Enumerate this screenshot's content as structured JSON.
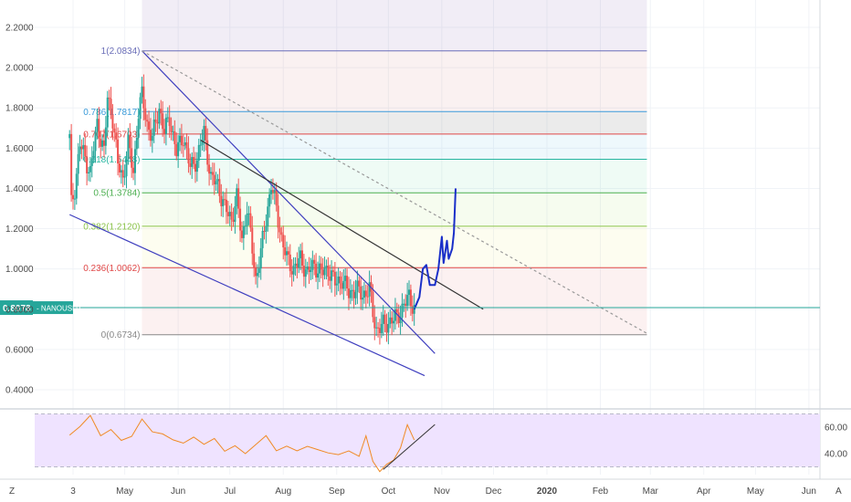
{
  "chart_data": [
    {
      "type": "candlestick",
      "symbol_label": "NANOUSDT",
      "last_price_label": "0.8078",
      "last_price": 0.8078,
      "y_axis_ticks": [
        "2.2000",
        "2.0000",
        "1.8000",
        "1.6000",
        "1.4000",
        "1.2000",
        "1.0000",
        "0.8000",
        "0.6000",
        "0.4000"
      ],
      "y_axis_tick_values": [
        2.2,
        2.0,
        1.8,
        1.6,
        1.4,
        1.2,
        1.0,
        0.8,
        0.6,
        0.4
      ],
      "ylim": [
        0.3,
        2.3
      ],
      "x_axis_labels": [
        "3",
        "May",
        "Jun",
        "Jul",
        "Aug",
        "Sep",
        "Oct",
        "Nov",
        "Dec",
        "2020",
        "Feb",
        "Mar",
        "Apr",
        "May",
        "Jun"
      ],
      "x_axis_label_days": [
        2,
        32,
        63,
        93,
        124,
        155,
        185,
        216,
        246,
        277,
        308,
        337,
        368,
        398,
        429
      ],
      "fibonacci": [
        {
          "label": "1(2.0834)",
          "ratio": 1,
          "price": 2.0834,
          "color": "#6a6eb8"
        },
        {
          "label": "0.786(1.7817)",
          "ratio": 0.786,
          "price": 1.7817,
          "color": "#3a9ad9"
        },
        {
          "label": "0.707(1.6703)",
          "ratio": 0.707,
          "price": 1.6703,
          "color": "#e04848"
        },
        {
          "label": "0.618(1.5448)",
          "ratio": 0.618,
          "price": 1.5448,
          "color": "#26b5a0"
        },
        {
          "label": "0.5(1.3784)",
          "ratio": 0.5,
          "price": 1.3784,
          "color": "#4caf50"
        },
        {
          "label": "0.382(1.2120)",
          "ratio": 0.382,
          "price": 1.212,
          "color": "#8bc34a"
        },
        {
          "label": "0.236(1.0062)",
          "ratio": 0.236,
          "price": 1.0062,
          "color": "#e04848"
        },
        {
          "label": "0(0.6734)",
          "ratio": 0,
          "price": 0.6734,
          "color": "#888888"
        }
      ],
      "price_series": [
        {
          "day": 0,
          "price": 1.65
        },
        {
          "day": 1,
          "price": 1.32
        },
        {
          "day": 3,
          "price": 1.4
        },
        {
          "day": 6,
          "price": 1.62
        },
        {
          "day": 9,
          "price": 1.55
        },
        {
          "day": 12,
          "price": 1.48
        },
        {
          "day": 16,
          "price": 1.72
        },
        {
          "day": 20,
          "price": 1.58
        },
        {
          "day": 22,
          "price": 1.85
        },
        {
          "day": 25,
          "price": 1.75
        },
        {
          "day": 28,
          "price": 1.52
        },
        {
          "day": 31,
          "price": 1.45
        },
        {
          "day": 34,
          "price": 1.62
        },
        {
          "day": 37,
          "price": 1.48
        },
        {
          "day": 40,
          "price": 1.78
        },
        {
          "day": 42,
          "price": 1.86
        },
        {
          "day": 45,
          "price": 1.72
        },
        {
          "day": 48,
          "price": 1.65
        },
        {
          "day": 52,
          "price": 1.8
        },
        {
          "day": 55,
          "price": 1.68
        },
        {
          "day": 58,
          "price": 1.75
        },
        {
          "day": 62,
          "price": 1.58
        },
        {
          "day": 66,
          "price": 1.66
        },
        {
          "day": 70,
          "price": 1.5
        },
        {
          "day": 74,
          "price": 1.55
        },
        {
          "day": 78,
          "price": 1.68
        },
        {
          "day": 82,
          "price": 1.45
        },
        {
          "day": 86,
          "price": 1.42
        },
        {
          "day": 90,
          "price": 1.3
        },
        {
          "day": 94,
          "price": 1.25
        },
        {
          "day": 97,
          "price": 1.35
        },
        {
          "day": 100,
          "price": 1.15
        },
        {
          "day": 103,
          "price": 1.3
        },
        {
          "day": 106,
          "price": 1.1
        },
        {
          "day": 108,
          "price": 0.95
        },
        {
          "day": 111,
          "price": 1.08
        },
        {
          "day": 114,
          "price": 1.25
        },
        {
          "day": 117,
          "price": 1.42
        },
        {
          "day": 120,
          "price": 1.3
        },
        {
          "day": 123,
          "price": 1.15
        },
        {
          "day": 126,
          "price": 1.05
        },
        {
          "day": 130,
          "price": 1.0
        },
        {
          "day": 134,
          "price": 1.05
        },
        {
          "day": 138,
          "price": 0.98
        },
        {
          "day": 142,
          "price": 1.02
        },
        {
          "day": 146,
          "price": 0.98
        },
        {
          "day": 150,
          "price": 1.0
        },
        {
          "day": 154,
          "price": 0.93
        },
        {
          "day": 158,
          "price": 0.95
        },
        {
          "day": 162,
          "price": 0.88
        },
        {
          "day": 166,
          "price": 0.9
        },
        {
          "day": 170,
          "price": 0.87
        },
        {
          "day": 174,
          "price": 0.9
        },
        {
          "day": 176,
          "price": 0.78
        },
        {
          "day": 178,
          "price": 0.7
        },
        {
          "day": 182,
          "price": 0.72
        },
        {
          "day": 186,
          "price": 0.74
        },
        {
          "day": 190,
          "price": 0.76
        },
        {
          "day": 194,
          "price": 0.82
        },
        {
          "day": 197,
          "price": 0.86
        },
        {
          "day": 200,
          "price": 0.81
        }
      ],
      "trendlines": [
        {
          "from": {
            "day": 42,
            "price": 2.0834
          },
          "to": {
            "day": 212,
            "price": 0.58
          },
          "color": "#3f3fbf",
          "style": "solid"
        },
        {
          "from": {
            "day": 0,
            "price": 1.27
          },
          "to": {
            "day": 206,
            "price": 0.47
          },
          "color": "#3f3fbf",
          "style": "solid"
        },
        {
          "from": {
            "day": 76,
            "price": 1.64
          },
          "to": {
            "day": 240,
            "price": 0.8
          },
          "color": "#333333",
          "style": "solid"
        },
        {
          "from": {
            "day": 42,
            "price": 2.0834
          },
          "to": {
            "day": 335,
            "price": 0.68
          },
          "color": "#999999",
          "style": "dashed"
        }
      ],
      "drawing_path": [
        {
          "day": 200,
          "price": 0.8
        },
        {
          "day": 203,
          "price": 0.86
        },
        {
          "day": 205,
          "price": 1.0
        },
        {
          "day": 207,
          "price": 1.02
        },
        {
          "day": 209,
          "price": 0.92
        },
        {
          "day": 212,
          "price": 0.92
        },
        {
          "day": 214,
          "price": 1.0
        },
        {
          "day": 216,
          "price": 1.16
        },
        {
          "day": 217,
          "price": 1.03
        },
        {
          "day": 219,
          "price": 1.14
        },
        {
          "day": 220,
          "price": 1.05
        },
        {
          "day": 222,
          "price": 1.1
        },
        {
          "day": 223,
          "price": 1.18
        },
        {
          "day": 224,
          "price": 1.4
        }
      ]
    },
    {
      "type": "line",
      "indicator": "RSI",
      "y_axis_ticks": [
        "60.00",
        "40.00"
      ],
      "y_axis_tick_values": [
        60,
        40
      ],
      "ylim": [
        22,
        78
      ],
      "band": [
        30,
        70
      ],
      "series_points": [
        {
          "day": 0,
          "value": 54
        },
        {
          "day": 6,
          "value": 61
        },
        {
          "day": 12,
          "value": 70
        },
        {
          "day": 18,
          "value": 55
        },
        {
          "day": 24,
          "value": 60
        },
        {
          "day": 30,
          "value": 52
        },
        {
          "day": 36,
          "value": 55
        },
        {
          "day": 42,
          "value": 68
        },
        {
          "day": 48,
          "value": 58
        },
        {
          "day": 54,
          "value": 56
        },
        {
          "day": 60,
          "value": 51
        },
        {
          "day": 66,
          "value": 48
        },
        {
          "day": 72,
          "value": 52
        },
        {
          "day": 78,
          "value": 46
        },
        {
          "day": 84,
          "value": 50
        },
        {
          "day": 90,
          "value": 40
        },
        {
          "day": 96,
          "value": 44
        },
        {
          "day": 102,
          "value": 38
        },
        {
          "day": 108,
          "value": 45
        },
        {
          "day": 114,
          "value": 52
        },
        {
          "day": 120,
          "value": 41
        },
        {
          "day": 126,
          "value": 45
        },
        {
          "day": 132,
          "value": 42
        },
        {
          "day": 138,
          "value": 46
        },
        {
          "day": 144,
          "value": 44
        },
        {
          "day": 150,
          "value": 42
        },
        {
          "day": 156,
          "value": 41
        },
        {
          "day": 162,
          "value": 44
        },
        {
          "day": 168,
          "value": 40
        },
        {
          "day": 172,
          "value": 52
        },
        {
          "day": 176,
          "value": 34
        },
        {
          "day": 180,
          "value": 28
        },
        {
          "day": 184,
          "value": 30
        },
        {
          "day": 188,
          "value": 36
        },
        {
          "day": 192,
          "value": 45
        },
        {
          "day": 196,
          "value": 60
        },
        {
          "day": 200,
          "value": 52
        }
      ],
      "trendline": {
        "from": {
          "day": 182,
          "value": 28
        },
        "to": {
          "day": 212,
          "value": 62
        },
        "color": "#333333"
      }
    }
  ],
  "colors": {
    "price_axis_label_bg": "#26a69a",
    "candle_up": "#26a69a",
    "candle_down": "#ef5350",
    "rsi_line": "#f08a24",
    "rsi_band": "#efe3ff"
  },
  "bottom_controls": {
    "log_toggle": "Z",
    "auto_toggle": "A"
  }
}
